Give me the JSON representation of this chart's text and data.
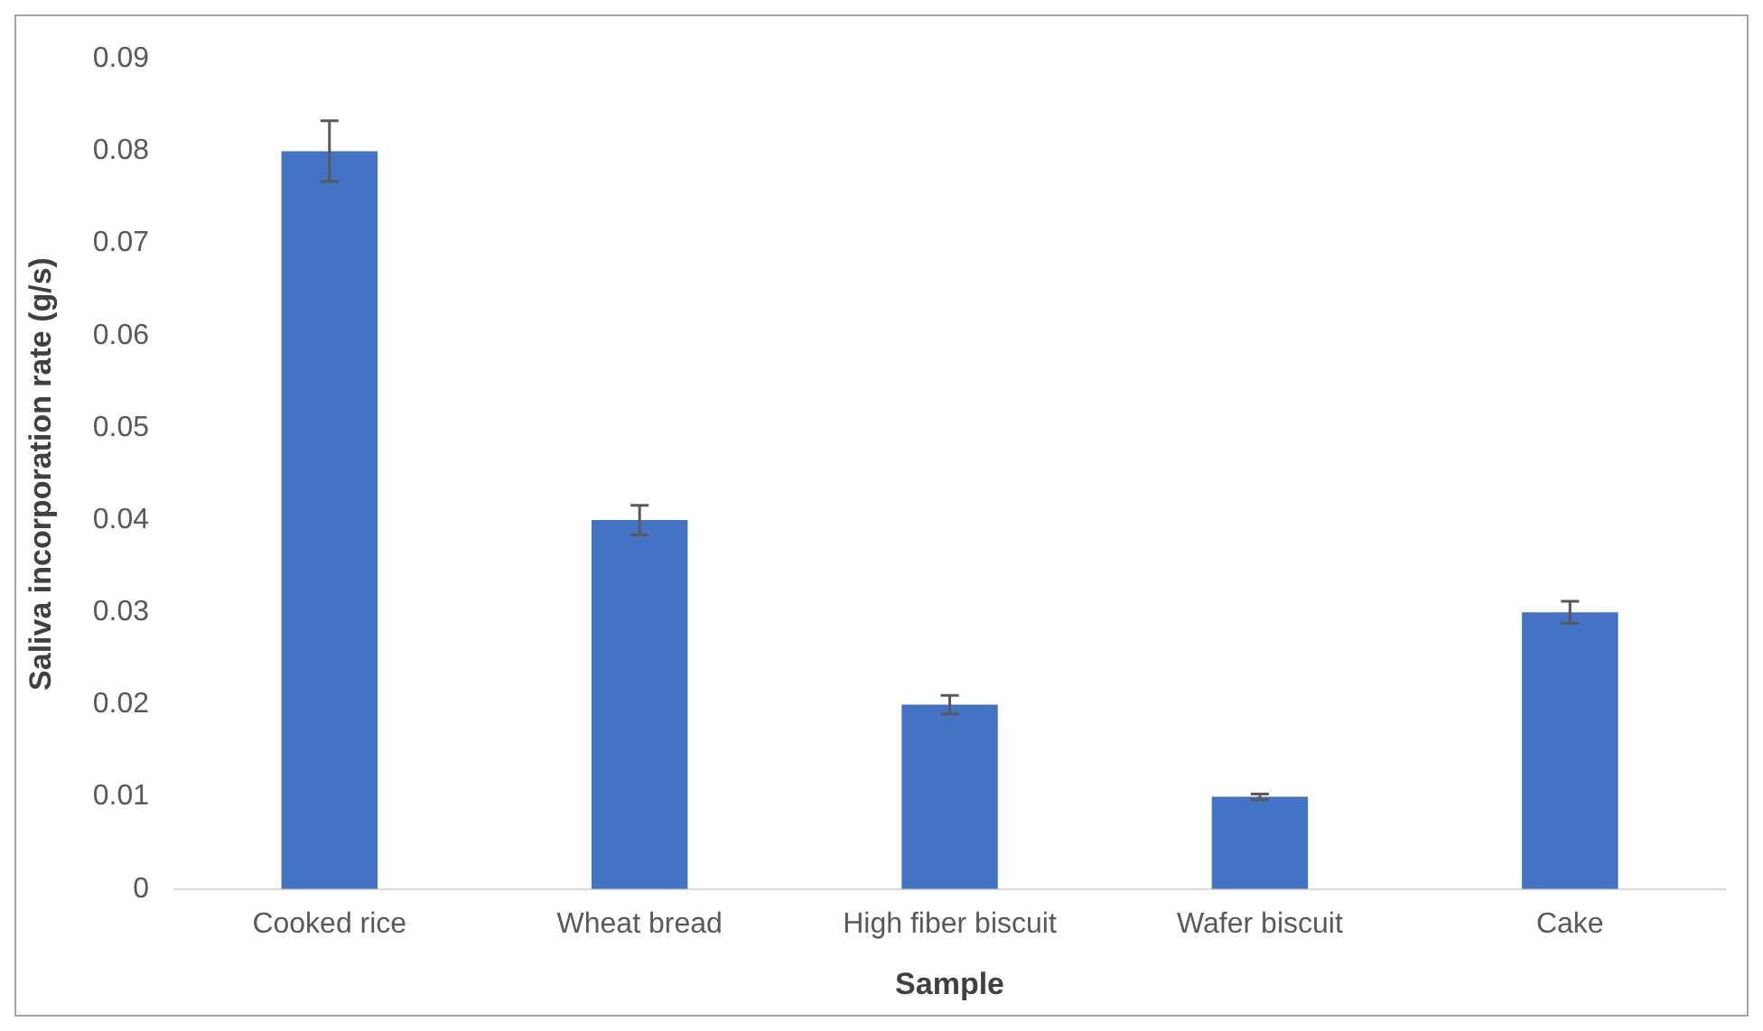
{
  "chart_data": {
    "type": "bar",
    "xlabel": "Sample",
    "ylabel": "Saliva incorporation rate (g/s)",
    "categories": [
      "Cooked rice",
      "Wheat bread",
      "High fiber biscuit",
      "Wafer biscuit",
      "Cake"
    ],
    "values": [
      0.08,
      0.04,
      0.02,
      0.01,
      0.03
    ],
    "errors": [
      0.0033,
      0.0016,
      0.001,
      0.0003,
      0.0012
    ],
    "color": "#4472c4",
    "ylim": [
      0,
      0.09
    ],
    "yticks": [
      0,
      0.01,
      0.02,
      0.03,
      0.04,
      0.05,
      0.06,
      0.07,
      0.08,
      0.09
    ],
    "grid": false,
    "legend": false
  }
}
